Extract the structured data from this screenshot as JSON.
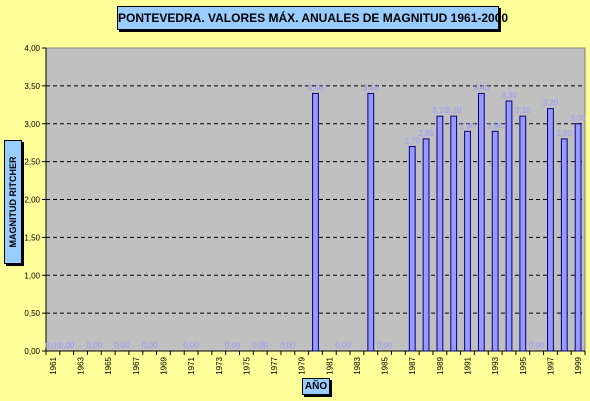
{
  "chart_data": {
    "type": "bar",
    "title": "PONTEVEDRA. VALORES MÁX. ANUALES DE MAGNITUD 1961-2000",
    "xlabel": "AÑO",
    "ylabel": "MAGNITUD RITCHER",
    "ylim": [
      0,
      4
    ],
    "yticks": [
      "0,00",
      "0,50",
      "1,00",
      "1,50",
      "2,00",
      "2,50",
      "3,00",
      "3,50",
      "4,00"
    ],
    "grid": "horizontal dashed",
    "categories": [
      "1961",
      "1962",
      "1963",
      "1964",
      "1965",
      "1966",
      "1967",
      "1968",
      "1969",
      "1970",
      "1971",
      "1972",
      "1973",
      "1974",
      "1975",
      "1976",
      "1977",
      "1978",
      "1979",
      "1980",
      "1981",
      "1982",
      "1983",
      "1984",
      "1985",
      "1986",
      "1987",
      "1988",
      "1989",
      "1990",
      "1991",
      "1992",
      "1993",
      "1994",
      "1995",
      "1996",
      "1997",
      "1998",
      "1999"
    ],
    "xticks": [
      "1961",
      "1963",
      "1965",
      "1967",
      "1969",
      "1971",
      "1973",
      "1975",
      "1977",
      "1979",
      "1981",
      "1983",
      "1985",
      "1987",
      "1989",
      "1991",
      "1993",
      "1995",
      "1997",
      "1999"
    ],
    "values": [
      0,
      0,
      null,
      0,
      null,
      0,
      null,
      0,
      null,
      null,
      0,
      null,
      null,
      0,
      null,
      0,
      null,
      0,
      null,
      3.4,
      null,
      0,
      null,
      3.4,
      0,
      null,
      2.7,
      2.8,
      3.1,
      3.1,
      2.9,
      3.4,
      2.9,
      3.3,
      3.1,
      0,
      3.2,
      2.8,
      3.0
    ],
    "data_labels": [
      "0,00",
      "0,00",
      null,
      "0,00",
      null,
      "0,00",
      null,
      "0,00",
      null,
      null,
      "0,00",
      null,
      null,
      "0,00",
      null,
      "0,00",
      null,
      "0,00",
      null,
      "3,40",
      null,
      "0,00",
      null,
      "3,40",
      "0,00",
      null,
      "2,70",
      "2,80",
      "3,10",
      "3,10",
      "2,90",
      "3,40",
      "2,90",
      "3,30",
      "3,10",
      "0,00",
      "3,20",
      "2,80",
      "3,00"
    ],
    "colors": {
      "background": "#ffff99",
      "plot_area": "#c0c0c0",
      "bar_fill": "#9999ff",
      "bar_stroke": "#000080",
      "label_color": "#9999ff",
      "title_box": "#99ccff"
    }
  }
}
